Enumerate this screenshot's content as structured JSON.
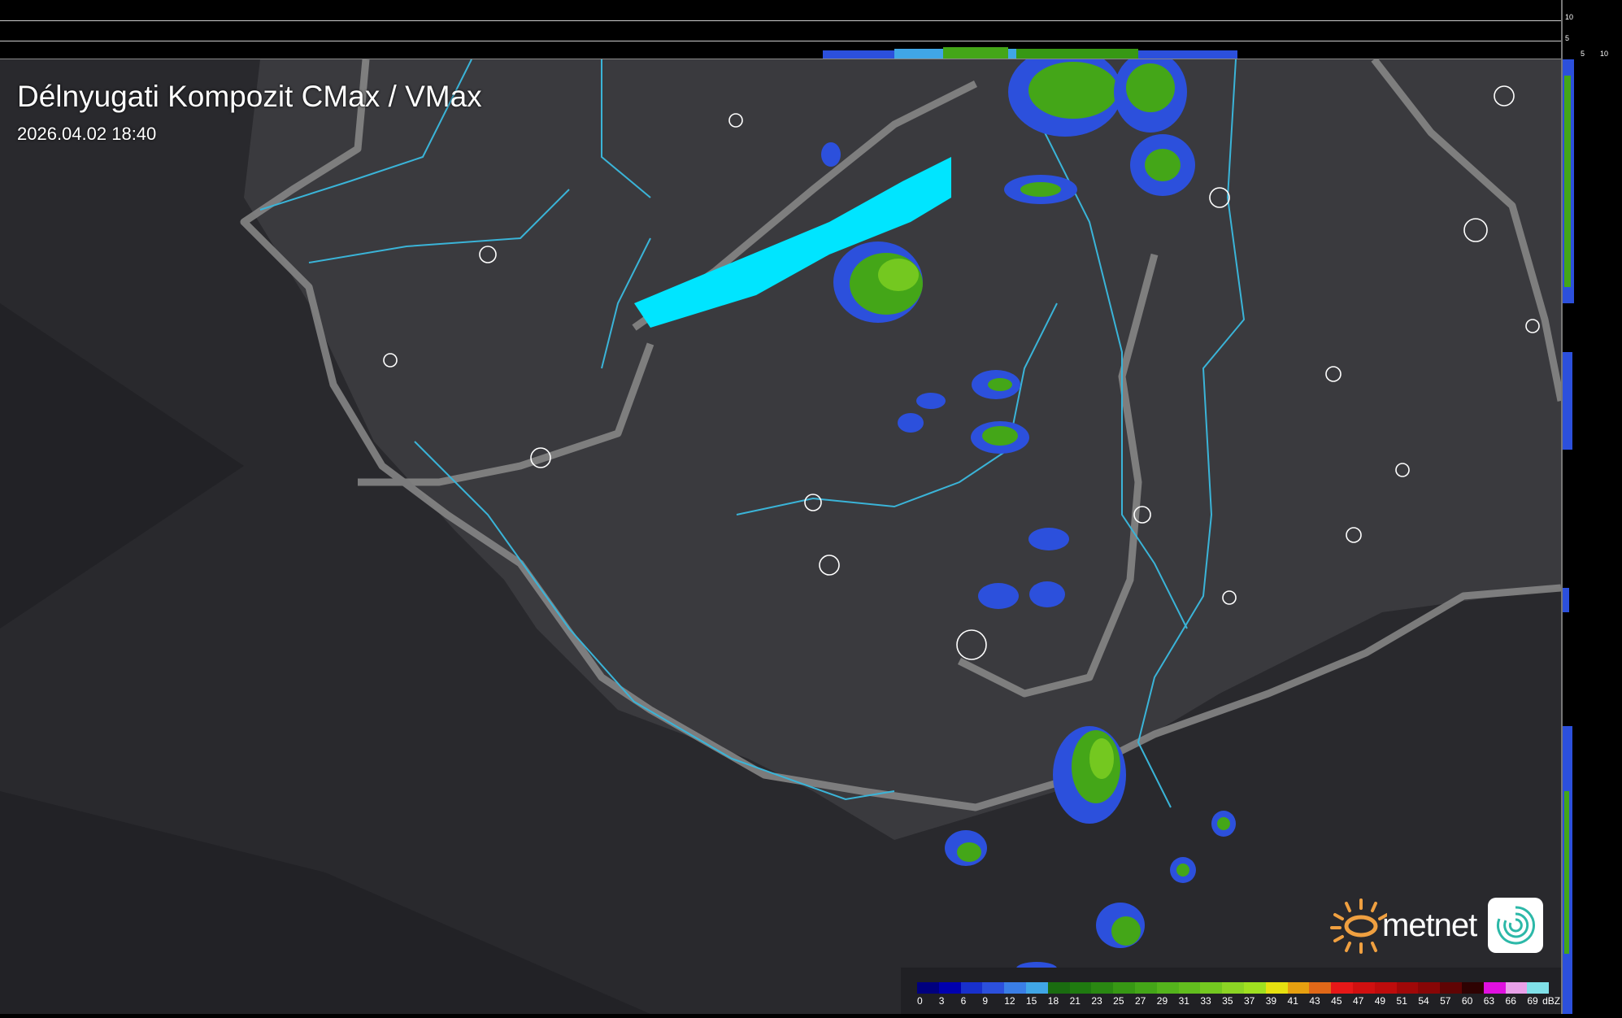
{
  "title": "Délnyugati Kompozit CMax / VMax",
  "timestamp": "2026.04.02 18:40",
  "profile_axes": {
    "vertical_ticks": [
      "10",
      "5"
    ],
    "horizontal_ticks": [
      "5",
      "10"
    ]
  },
  "legend": {
    "unit": "dBZ",
    "labels": [
      "0",
      "3",
      "6",
      "9",
      "12",
      "15",
      "18",
      "21",
      "23",
      "25",
      "27",
      "29",
      "31",
      "33",
      "35",
      "37",
      "39",
      "41",
      "43",
      "45",
      "47",
      "49",
      "51",
      "54",
      "57",
      "60",
      "63",
      "66",
      "69"
    ],
    "colors": [
      "#00007e",
      "#0000ae",
      "#1830cc",
      "#2c50dc",
      "#3a7ee6",
      "#40a6e6",
      "#1a6c10",
      "#1f7a10",
      "#2a8812",
      "#379814",
      "#44a618",
      "#54b41c",
      "#62be1e",
      "#74c820",
      "#8cd424",
      "#a0e020",
      "#e6e010",
      "#e6a010",
      "#e06818",
      "#e61818",
      "#d01010",
      "#be0c0c",
      "#a00808",
      "#880606",
      "#600404",
      "#2e0202",
      "#e010e0",
      "#e8a0e8",
      "#80e0e8"
    ]
  },
  "logo": {
    "brand": "metnet",
    "sun_color": "#f0a040"
  },
  "map": {
    "lake_color": "#00e5ff",
    "river_color": "#3ab4d8",
    "border_color": "#8a8a8a"
  }
}
